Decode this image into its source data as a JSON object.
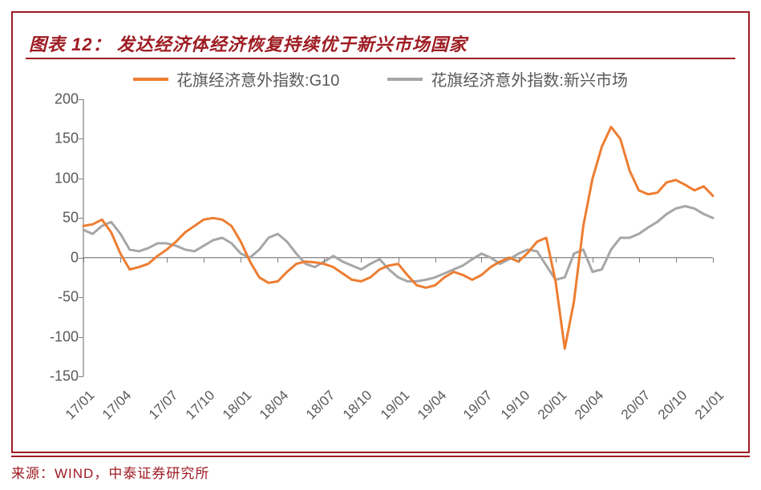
{
  "title": "图表 12： 发达经济体经济恢复持续优于新兴市场国家",
  "source": "来源：WIND，中泰证券研究所",
  "chart": {
    "type": "line",
    "background_color": "#ffffff",
    "axis_color": "#808080",
    "label_color": "#595959",
    "label_fontsize": 18,
    "title_color": "#9e1c23",
    "border_color": "#9e1c23",
    "line_width": 3,
    "ylim": [
      -150,
      200
    ],
    "ytick_step": 50,
    "yticks": [
      -150,
      -100,
      -50,
      0,
      50,
      100,
      150,
      200
    ],
    "xlabels": [
      "17/01",
      "17/04",
      "17/07",
      "17/10",
      "18/01",
      "18/04",
      "18/07",
      "18/10",
      "19/01",
      "19/04",
      "19/07",
      "19/10",
      "20/01",
      "20/04",
      "20/07",
      "20/10",
      "21/01"
    ],
    "xlabel_rotation_deg": -45,
    "series": [
      {
        "name": "花旗经济意外指数:G10",
        "color": "#ed7d31",
        "values": [
          40,
          42,
          48,
          32,
          5,
          -15,
          -12,
          -8,
          2,
          10,
          20,
          32,
          40,
          48,
          50,
          48,
          40,
          20,
          -5,
          -25,
          -32,
          -30,
          -18,
          -8,
          -5,
          -6,
          -8,
          -12,
          -20,
          -28,
          -30,
          -25,
          -15,
          -10,
          -8,
          -22,
          -35,
          -38,
          -35,
          -25,
          -18,
          -22,
          -28,
          -22,
          -12,
          -5,
          0,
          -5,
          6,
          20,
          25,
          -30,
          -115,
          -55,
          40,
          100,
          140,
          165,
          150,
          110,
          85,
          80,
          82,
          95,
          98,
          92,
          85,
          90,
          78
        ]
      },
      {
        "name": "花旗经济意外指数:新兴市场",
        "color": "#a6a6a6",
        "values": [
          35,
          30,
          40,
          45,
          30,
          10,
          8,
          12,
          18,
          18,
          15,
          10,
          8,
          15,
          22,
          25,
          18,
          5,
          0,
          10,
          25,
          30,
          20,
          5,
          -8,
          -12,
          -5,
          2,
          -5,
          -10,
          -15,
          -8,
          -2,
          -15,
          -25,
          -30,
          -30,
          -28,
          -25,
          -20,
          -15,
          -10,
          -2,
          5,
          0,
          -8,
          -2,
          5,
          10,
          8,
          -10,
          -28,
          -25,
          5,
          10,
          -18,
          -15,
          10,
          25,
          25,
          30,
          38,
          45,
          55,
          62,
          65,
          62,
          55,
          50
        ]
      }
    ]
  }
}
